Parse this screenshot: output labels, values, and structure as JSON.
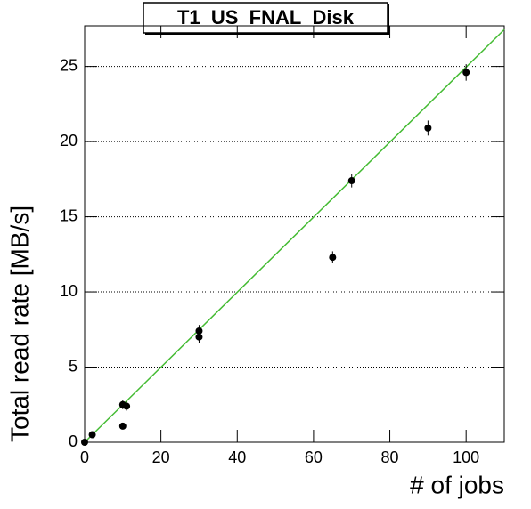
{
  "chart_data": {
    "type": "scatter",
    "title": "T1_US_FNAL_Disk",
    "x_label": "# of jobs",
    "y_label": "Total read rate [MB/s]",
    "x": [
      0,
      2,
      10,
      10,
      11,
      30,
      30,
      65,
      70,
      90,
      100
    ],
    "values": [
      0,
      0.5,
      1.07,
      2.5,
      2.4,
      7.4,
      7.0,
      12.3,
      17.4,
      20.9,
      24.6
    ],
    "errors": [
      0.2,
      0.2,
      0.2,
      0.3,
      0.3,
      0.4,
      0.4,
      0.4,
      0.45,
      0.5,
      0.55
    ],
    "color": "#000000",
    "fit": {
      "x": [
        0,
        110
      ],
      "values": [
        0,
        27.45
      ],
      "color": "#44bb33"
    },
    "xlim": [
      0,
      110
    ],
    "ylim": [
      0,
      27.7
    ],
    "xticks": [
      0,
      20,
      40,
      60,
      80,
      100
    ],
    "yticks": [
      0,
      5,
      10,
      15,
      20,
      25
    ],
    "grid": "y"
  }
}
